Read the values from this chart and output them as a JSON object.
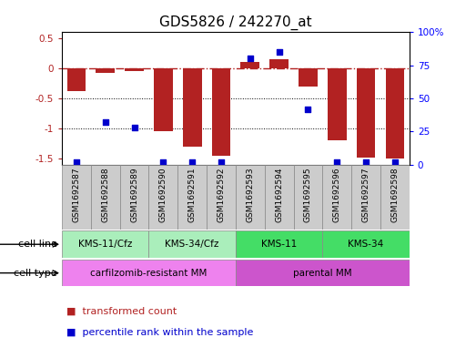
{
  "title": "GDS5826 / 242270_at",
  "samples": [
    "GSM1692587",
    "GSM1692588",
    "GSM1692589",
    "GSM1692590",
    "GSM1692591",
    "GSM1692592",
    "GSM1692593",
    "GSM1692594",
    "GSM1692595",
    "GSM1692596",
    "GSM1692597",
    "GSM1692598"
  ],
  "bar_values": [
    -0.38,
    -0.07,
    -0.05,
    -1.05,
    -1.3,
    -1.45,
    0.1,
    0.15,
    -0.3,
    -1.2,
    -1.48,
    -1.5
  ],
  "percentile_values": [
    2,
    32,
    28,
    2,
    2,
    2,
    80,
    85,
    42,
    2,
    2,
    2
  ],
  "bar_color": "#b22222",
  "dot_color": "#0000cc",
  "ylim_left": [
    -1.6,
    0.6
  ],
  "ylim_right": [
    0,
    100
  ],
  "hline_y": 0,
  "dotted_lines": [
    -0.5,
    -1.0
  ],
  "cell_line_groups": [
    {
      "label": "KMS-11/Cfz",
      "start": 0,
      "end": 3,
      "color": "#aaeebb"
    },
    {
      "label": "KMS-34/Cfz",
      "start": 3,
      "end": 6,
      "color": "#aaeebb"
    },
    {
      "label": "KMS-11",
      "start": 6,
      "end": 9,
      "color": "#44dd66"
    },
    {
      "label": "KMS-34",
      "start": 9,
      "end": 12,
      "color": "#44dd66"
    }
  ],
  "cell_type_groups": [
    {
      "label": "carfilzomib-resistant MM",
      "start": 0,
      "end": 6,
      "color": "#ee82ee"
    },
    {
      "label": "parental MM",
      "start": 6,
      "end": 12,
      "color": "#cc55cc"
    }
  ],
  "legend_items": [
    {
      "label": "transformed count",
      "color": "#b22222"
    },
    {
      "label": "percentile rank within the sample",
      "color": "#0000cc"
    }
  ],
  "row_label_cell_line": "cell line",
  "row_label_cell_type": "cell type",
  "title_fontsize": 11,
  "tick_fontsize": 7.5,
  "sample_fontsize": 6.5,
  "legend_fontsize": 8,
  "bar_width": 0.65
}
